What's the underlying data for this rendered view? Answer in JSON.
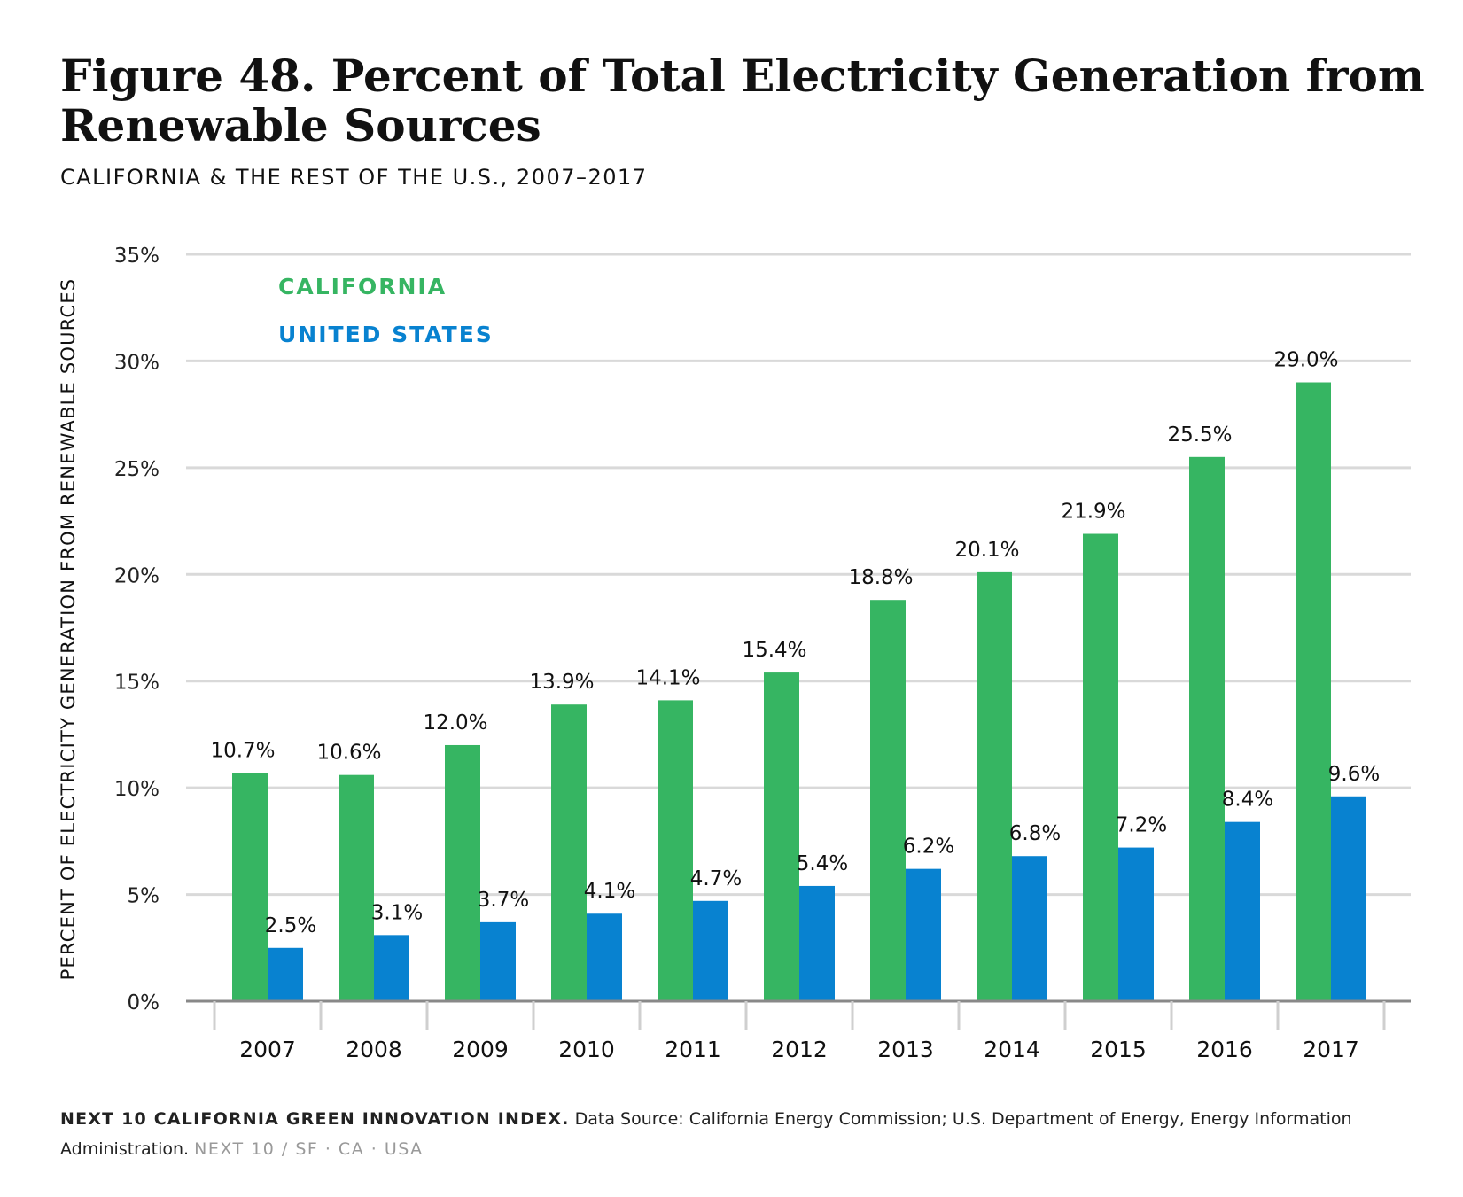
{
  "header": {
    "title": "Figure 48. Percent of Total Electricity Generation from Renewable Sources",
    "subtitle": "CALIFORNIA & THE REST OF THE U.S., 2007–2017"
  },
  "footer": {
    "source_title": "NEXT 10 CALIFORNIA GREEN INNOVATION INDEX.",
    "source_text": "Data Source: California Energy Commission; U.S. Department of Energy, Energy Information Administration.",
    "brand": "NEXT 10  /  SF · CA · USA"
  },
  "chart_data": {
    "type": "bar",
    "title": "Figure 48. Percent of Total Electricity Generation from Renewable Sources",
    "subtitle": "CALIFORNIA & THE REST OF THE U.S., 2007–2017",
    "xlabel": "",
    "ylabel": "PERCENT OF ELECTRICITY GENERATION FROM RENEWABLE SOURCES",
    "ylim": [
      0,
      35
    ],
    "yticks": [
      0,
      5,
      10,
      15,
      20,
      25,
      30,
      35
    ],
    "ytick_labels": [
      "0%",
      "5%",
      "10%",
      "15%",
      "20%",
      "25%",
      "30%",
      "35%"
    ],
    "grid": true,
    "legend_position": "top-left",
    "categories": [
      "2007",
      "2008",
      "2009",
      "2010",
      "2011",
      "2012",
      "2013",
      "2014",
      "2015",
      "2016",
      "2017"
    ],
    "series": [
      {
        "name": "CALIFORNIA",
        "color": "#36b562",
        "values": [
          10.7,
          10.6,
          12.0,
          13.9,
          14.1,
          15.4,
          18.8,
          20.1,
          21.9,
          25.5,
          29.0
        ],
        "labels": [
          "10.7%",
          "10.6%",
          "12.0%",
          "13.9%",
          "14.1%",
          "15.4%",
          "18.8%",
          "20.1%",
          "21.9%",
          "25.5%",
          "29.0%"
        ]
      },
      {
        "name": "UNITED STATES",
        "color": "#0882d0",
        "values": [
          2.5,
          3.1,
          3.7,
          4.1,
          4.7,
          5.4,
          6.2,
          6.8,
          7.2,
          8.4,
          9.6
        ],
        "labels": [
          "2.5%",
          "3.1%",
          "3.7%",
          "4.1%",
          "4.7%",
          "5.4%",
          "6.2%",
          "6.8%",
          "7.2%",
          "8.4%",
          "9.6%"
        ]
      }
    ]
  }
}
